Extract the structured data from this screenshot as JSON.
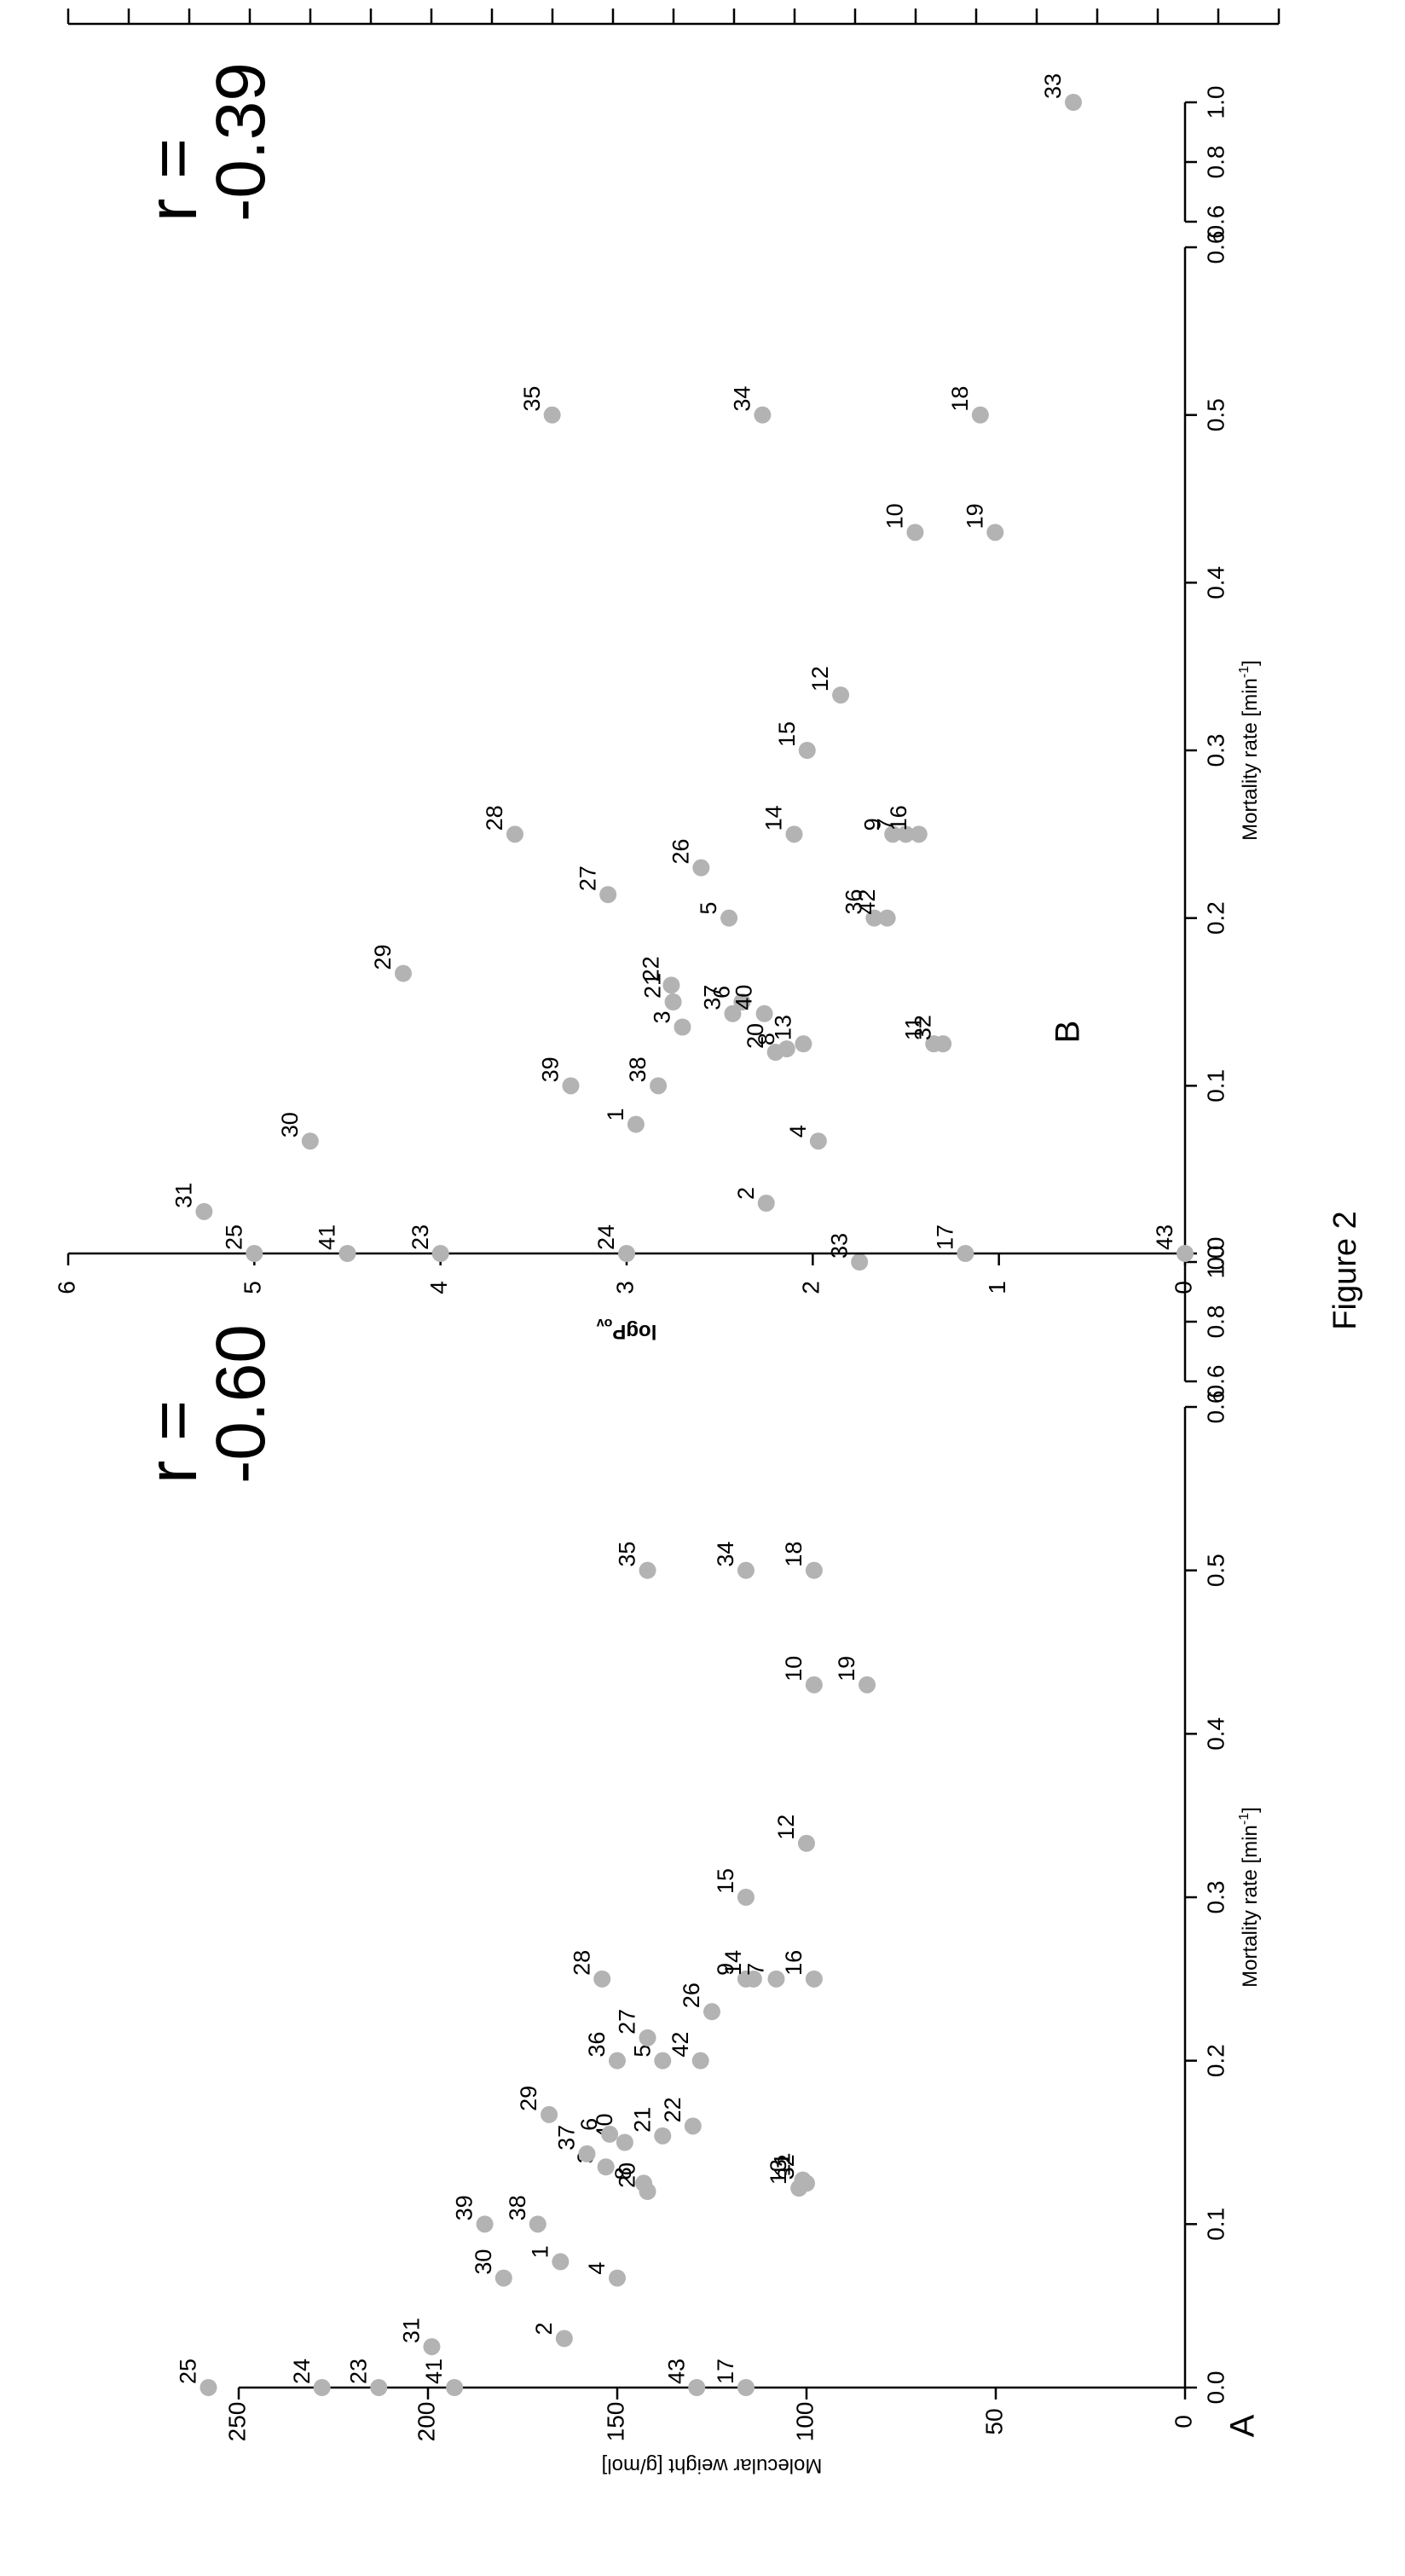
{
  "figure": {
    "caption": "Figure 2"
  },
  "style": {
    "point_color": "#b3b3b3",
    "axis_color": "#000000",
    "background": "#ffffff"
  },
  "panel_a": {
    "label": "A",
    "r_label": "r =",
    "r_value": "-0.60",
    "xlabel": "Mortality rate [min",
    "xlabel_sup": "-1",
    "xlabel_end": "]",
    "ylabel": "Molecular weight [g/mol]"
  },
  "panel_b": {
    "label": "B",
    "r_label": "r =",
    "r_value": "-0.39",
    "xlabel": "Mortality rate [min",
    "xlabel_sup": "-1",
    "xlabel_end": "]",
    "ylabel": "logP",
    "ylabel_sub": "ov"
  },
  "chart_data": [
    {
      "type": "scatter",
      "panel": "A",
      "xlabel": "Mortality rate [min-1]",
      "ylabel": "Molecular weight [g/mol]",
      "x_axis_segments": [
        {
          "range": [
            0,
            0.6
          ],
          "ticks": [
            "0.0",
            "0.1",
            "0.2",
            "0.3",
            "0.4",
            "0.5",
            "0.6"
          ]
        },
        {
          "range": [
            0.6,
            1.0
          ],
          "ticks": [
            "0.6",
            "0.8",
            "1.0"
          ]
        }
      ],
      "y_ticks": [
        "0",
        "50",
        "100",
        "150",
        "200",
        "250"
      ],
      "ylim": [
        0,
        260
      ],
      "annotation": "r = -0.60",
      "points": [
        {
          "label": "25",
          "x": 0.0,
          "y": 258
        },
        {
          "label": "24",
          "x": 0.0,
          "y": 228
        },
        {
          "label": "23",
          "x": 0.0,
          "y": 213
        },
        {
          "label": "41",
          "x": 0.0,
          "y": 193
        },
        {
          "label": "43",
          "x": 0.0,
          "y": 129
        },
        {
          "label": "17",
          "x": 0.0,
          "y": 116
        },
        {
          "label": "31",
          "x": 0.025,
          "y": 199
        },
        {
          "label": "2",
          "x": 0.03,
          "y": 164
        },
        {
          "label": "30",
          "x": 0.067,
          "y": 180
        },
        {
          "label": "4",
          "x": 0.067,
          "y": 150
        },
        {
          "label": "1",
          "x": 0.077,
          "y": 165
        },
        {
          "label": "39",
          "x": 0.1,
          "y": 185
        },
        {
          "label": "38",
          "x": 0.1,
          "y": 171
        },
        {
          "label": "20",
          "x": 0.12,
          "y": 142
        },
        {
          "label": "8",
          "x": 0.125,
          "y": 143
        },
        {
          "label": "13",
          "x": 0.122,
          "y": 102
        },
        {
          "label": "32",
          "x": 0.125,
          "y": 100
        },
        {
          "label": "11",
          "x": 0.127,
          "y": 101
        },
        {
          "label": "3",
          "x": 0.135,
          "y": 153
        },
        {
          "label": "37",
          "x": 0.143,
          "y": 158
        },
        {
          "label": "40",
          "x": 0.15,
          "y": 148
        },
        {
          "label": "6",
          "x": 0.155,
          "y": 152
        },
        {
          "label": "21",
          "x": 0.154,
          "y": 138
        },
        {
          "label": "22",
          "x": 0.16,
          "y": 130
        },
        {
          "label": "29",
          "x": 0.167,
          "y": 168
        },
        {
          "label": "36",
          "x": 0.2,
          "y": 150
        },
        {
          "label": "5",
          "x": 0.2,
          "y": 138
        },
        {
          "label": "42",
          "x": 0.2,
          "y": 128
        },
        {
          "label": "27",
          "x": 0.214,
          "y": 142
        },
        {
          "label": "26",
          "x": 0.23,
          "y": 125
        },
        {
          "label": "28",
          "x": 0.25,
          "y": 154
        },
        {
          "label": "9",
          "x": 0.25,
          "y": 116
        },
        {
          "label": "14",
          "x": 0.25,
          "y": 114
        },
        {
          "label": "7",
          "x": 0.25,
          "y": 108
        },
        {
          "label": "16",
          "x": 0.25,
          "y": 98
        },
        {
          "label": "15",
          "x": 0.3,
          "y": 116
        },
        {
          "label": "12",
          "x": 0.333,
          "y": 100
        },
        {
          "label": "10",
          "x": 0.43,
          "y": 98
        },
        {
          "label": "19",
          "x": 0.43,
          "y": 84
        },
        {
          "label": "35",
          "x": 0.5,
          "y": 142
        },
        {
          "label": "34",
          "x": 0.5,
          "y": 116
        },
        {
          "label": "18",
          "x": 0.5,
          "y": 98
        },
        {
          "label": "33",
          "x": 1.0,
          "y": 86
        }
      ]
    },
    {
      "type": "scatter",
      "panel": "B",
      "xlabel": "Mortality rate [min-1]",
      "ylabel": "logP ov",
      "x_axis_segments": [
        {
          "range": [
            0,
            0.6
          ],
          "ticks": [
            "0.0",
            "0.1",
            "0.2",
            "0.3",
            "0.4",
            "0.5",
            "0.6"
          ]
        },
        {
          "range": [
            0.6,
            1.0
          ],
          "ticks": [
            "0.6",
            "0.8",
            "1.0"
          ]
        }
      ],
      "y_ticks": [
        "0",
        "1",
        "2",
        "3",
        "4",
        "5",
        "6"
      ],
      "ylim": [
        0,
        6
      ],
      "annotation": "r = -0.39",
      "points": [
        {
          "label": "31",
          "x": 0.025,
          "y": 5.27
        },
        {
          "label": "25",
          "x": 0.0,
          "y": 5.0
        },
        {
          "label": "30",
          "x": 0.067,
          "y": 4.7
        },
        {
          "label": "41",
          "x": 0.0,
          "y": 4.5
        },
        {
          "label": "23",
          "x": 0.0,
          "y": 4.0
        },
        {
          "label": "29",
          "x": 0.167,
          "y": 4.2
        },
        {
          "label": "28",
          "x": 0.25,
          "y": 3.6
        },
        {
          "label": "39",
          "x": 0.1,
          "y": 3.3
        },
        {
          "label": "35",
          "x": 0.5,
          "y": 3.4
        },
        {
          "label": "24",
          "x": 0.0,
          "y": 3.0
        },
        {
          "label": "27",
          "x": 0.214,
          "y": 3.1
        },
        {
          "label": "1",
          "x": 0.077,
          "y": 2.95
        },
        {
          "label": "38",
          "x": 0.1,
          "y": 2.83
        },
        {
          "label": "21",
          "x": 0.15,
          "y": 2.75
        },
        {
          "label": "22",
          "x": 0.16,
          "y": 2.76
        },
        {
          "label": "3",
          "x": 0.135,
          "y": 2.7
        },
        {
          "label": "26",
          "x": 0.23,
          "y": 2.6
        },
        {
          "label": "37",
          "x": 0.143,
          "y": 2.43
        },
        {
          "label": "6",
          "x": 0.15,
          "y": 2.38
        },
        {
          "label": "20",
          "x": 0.12,
          "y": 2.2
        },
        {
          "label": "8",
          "x": 0.122,
          "y": 2.14
        },
        {
          "label": "40",
          "x": 0.143,
          "y": 2.26
        },
        {
          "label": "13",
          "x": 0.125,
          "y": 2.05
        },
        {
          "label": "34",
          "x": 0.5,
          "y": 2.27
        },
        {
          "label": "2",
          "x": 0.03,
          "y": 2.25
        },
        {
          "label": "4",
          "x": 0.067,
          "y": 1.97
        },
        {
          "label": "5",
          "x": 0.2,
          "y": 2.45
        },
        {
          "label": "14",
          "x": 0.25,
          "y": 2.1
        },
        {
          "label": "15",
          "x": 0.3,
          "y": 2.03
        },
        {
          "label": "12",
          "x": 0.333,
          "y": 1.85
        },
        {
          "label": "36",
          "x": 0.2,
          "y": 1.67
        },
        {
          "label": "42",
          "x": 0.2,
          "y": 1.6
        },
        {
          "label": "9",
          "x": 0.25,
          "y": 1.57
        },
        {
          "label": "7",
          "x": 0.25,
          "y": 1.5
        },
        {
          "label": "16",
          "x": 0.25,
          "y": 1.43
        },
        {
          "label": "10",
          "x": 0.43,
          "y": 1.45
        },
        {
          "label": "11",
          "x": 0.125,
          "y": 1.35
        },
        {
          "label": "32",
          "x": 0.125,
          "y": 1.3
        },
        {
          "label": "18",
          "x": 0.5,
          "y": 1.1
        },
        {
          "label": "19",
          "x": 0.43,
          "y": 1.02
        },
        {
          "label": "17",
          "x": 0.0,
          "y": 1.18
        },
        {
          "label": "43",
          "x": 0.0,
          "y": 0.0
        },
        {
          "label": "33",
          "x": 1.0,
          "y": 0.6
        }
      ]
    }
  ]
}
